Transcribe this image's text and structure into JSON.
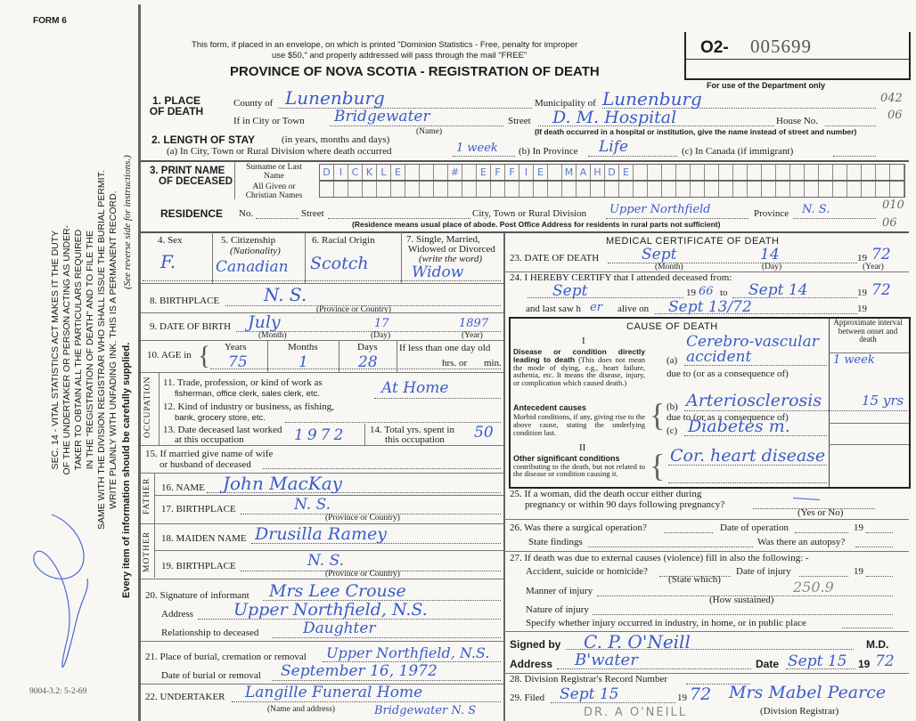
{
  "form_number": "FORM 6",
  "print_code": "9004-3.2: 5-2-69",
  "side_notice": {
    "lines": [
      "SEC. 14 - VITAL STATISTICS ACT MAKES IT THE DUTY",
      "OF THE UNDERTAKER OR PERSON ACTING AS UNDER-",
      "TAKER TO OBTAIN ALL THE PARTICULARS REQUIRED",
      "IN THE \"REGISTRATION OF DEATH\" AND TO FILE THE",
      "SAME WITH THE DIVISION REGISTRAR WHO SHALL ISSUE THE BURIAL PERMIT.",
      "WRITE PLAINLY WITH UNFADING INK. THIS IS A PERMANENT RECORD."
    ],
    "instructions": "(See reverse side for instructions.)",
    "every_item": "Every item of information should be carefully supplied."
  },
  "header": {
    "mail_notice_1": "This form, if placed in an envelope, on which is printed \"Dominion Statistics - Free, penalty for improper",
    "mail_notice_2": "use $50,\" and properly addressed will pass through the mail \"FREE\"",
    "title": "PROVINCE OF NOVA SCOTIA - REGISTRATION OF DEATH",
    "reg_prefix": "O2-",
    "reg_number": "005699",
    "dept_use": "For use of the Department only",
    "codes": [
      "042",
      "06",
      "010",
      "06"
    ]
  },
  "place_of_death": {
    "label": "1. PLACE OF DEATH",
    "county_label": "County of",
    "county": "Lunenburg",
    "municipality_label": "Municipality of",
    "municipality": "Lunenburg",
    "city_label": "If in City or Town",
    "city": "Bridgewater",
    "name_note": "(Name)",
    "street_label": "Street",
    "street": "D. M. Hospital",
    "house_label": "House No.",
    "hospital_note": "(If death occurred in a hospital or institution, give the name instead of street and number)"
  },
  "length_of_stay": {
    "label": "2. LENGTH OF STAY",
    "label_note": "(in years, months and days)",
    "a_label": "(a) In City, Town or Rural Division where death occurred",
    "a_value": "1 week",
    "b_label": "(b) In Province",
    "b_value": "Life",
    "c_label": "(c) In Canada (if immigrant)"
  },
  "name_of_deceased": {
    "label_1": "3. PRINT NAME",
    "label_2": "OF DECEASED",
    "surname_label": "Surname or Last Name",
    "given_label": "All Given or Christian Names",
    "surname_letters": [
      "D",
      "I",
      "C",
      "K",
      "L",
      "E",
      "",
      "",
      "",
      "#",
      "",
      "E",
      "F",
      "F",
      "I",
      "E",
      "",
      "M",
      "A",
      "H",
      "D",
      "E"
    ]
  },
  "residence": {
    "label": "RESIDENCE",
    "no_label": "No.",
    "street_label": "Street",
    "city_label": "City, Town or Rural Division",
    "city": "Upper Northfield",
    "province_label": "Province",
    "province": "N. S.",
    "note": "(Residence means usual place of abode. Post Office Address for residents in rural parts not sufficient)"
  },
  "personal": {
    "sex_label": "4. Sex",
    "sex": "F.",
    "citizenship_label": "5. Citizenship",
    "citizenship_note": "(Nationality)",
    "citizenship": "Canadian",
    "racial_label": "6. Racial Origin",
    "racial": "Scotch",
    "marital_label_1": "7. Single, Married,",
    "marital_label_2": "Widowed or Divorced",
    "marital_label_3": "(write the word)",
    "marital": "Widow",
    "birthplace_label": "8. BIRTHPLACE",
    "birthplace": "N. S.",
    "province_or_country": "(Province or Country)",
    "dob_label": "9. DATE OF BIRTH",
    "dob_month": "July",
    "dob_day": "17",
    "dob_year": "1897",
    "month_note": "(Month)",
    "day_note": "(Day)",
    "year_note": "(Year)",
    "age_label": "10. AGE in",
    "years_label": "Years",
    "years": "75",
    "months_label": "Months",
    "months": "1",
    "days_label": "Days",
    "days": "28",
    "less_than_day": "If less than one day old",
    "hrs_label": "hrs. or",
    "min_label": "min."
  },
  "occupation": {
    "section": "OCCUPATION",
    "trade_label_1": "11. Trade, profession, or kind of work as",
    "trade_label_2": "fisherman, office clerk, sales clerk, etc.",
    "trade": "At Home",
    "industry_label_1": "12. Kind of industry or business, as fishing,",
    "industry_label_2": "bank, grocery store, etc.",
    "last_worked_label_1": "13. Date deceased last worked",
    "last_worked_label_2": "at this occupation",
    "last_worked": "1972",
    "total_yrs_label_1": "14. Total yrs. spent in",
    "total_yrs_label_2": "this occupation",
    "total_yrs": "50",
    "spouse_label_1": "15. If married give name of wife",
    "spouse_label_2": "or husband of deceased"
  },
  "parents": {
    "father_section": "FATHER",
    "father_name_label": "16. NAME",
    "father_name": "John MacKay",
    "father_birthplace_label": "17. BIRTHPLACE",
    "father_birthplace": "N. S.",
    "mother_section": "MOTHER",
    "mother_name_label": "18. MAIDEN NAME",
    "mother_name": "Drusilla Ramey",
    "mother_birthplace_label": "19. BIRTHPLACE",
    "mother_birthplace": "N. S."
  },
  "informant": {
    "signature_label": "20. Signature of informant",
    "signature": "Mrs Lee Crouse",
    "address_label": "Address",
    "address": "Upper Northfield, N.S.",
    "relationship_label": "Relationship to deceased",
    "relationship": "Daughter"
  },
  "burial": {
    "place_label": "21. Place of burial, cremation or removal",
    "place": "Upper Northfield, N.S.",
    "date_label": "Date of burial or removal",
    "date": "September 16, 1972",
    "undertaker_label": "22. UNDERTAKER",
    "undertaker": "Langille Funeral Home",
    "undertaker_address": "Bridgewater N. S",
    "name_address_note": "(Name and address)"
  },
  "medical": {
    "title": "MEDICAL CERTIFICATE OF DEATH",
    "dod_label": "23. DATE OF DEATH",
    "dod_month": "Sept",
    "dod_day": "14",
    "dod_year_prefix": "19",
    "dod_year": "72",
    "certify_label": "24. I HEREBY CERTIFY that I attended deceased from:",
    "from": "Sept",
    "from_year": "66",
    "to_label": "to",
    "to": "Sept 14",
    "to_year": "72",
    "last_saw_label": "and last saw h",
    "last_saw_pronoun": "er",
    "alive_on_label": "alive on",
    "last_saw": "Sept 13/72",
    "cause_title": "CAUSE OF DEATH",
    "interval_label": "Approximate interval between onset and death",
    "part_1": "I",
    "part_1_desc_title": "Disease or condition directly leading to death",
    "part_1_desc": "(This does not mean the mode of dying, e.g., heart failure, asthenia, etc. It means the disease, injury, or complication which caused death.)",
    "cause_a": "Cerebro-vascular accident",
    "interval_a": "1 week",
    "due_to": "due to (or as a consequence of)",
    "antecedent_title": "Antecedent causes",
    "antecedent_desc": "Morbid conditions, if any, giving rise to the above cause, stating the underlying condition last.",
    "cause_b": "Arteriosclerosis",
    "interval_b": "15 yrs",
    "cause_c": "Diabetes m.",
    "part_2": "II",
    "other_title": "Other significant conditions",
    "other_desc": "contributing to the death, but not related to the disease or condition causing it.",
    "other": "Cor. heart disease",
    "a_label": "(a)",
    "b_label": "(b)",
    "c_label": "(c)"
  },
  "questions": {
    "q25_1": "25. If a woman, did the death occur either during",
    "q25_2": "pregnancy or within 90 days following pregnancy?",
    "yes_no": "(Yes or No)",
    "q26": "26. Was there a surgical operation?",
    "date_op": "Date of operation",
    "nineteen": "19",
    "state_findings": "State findings",
    "autopsy": "Was there an autopsy?",
    "q27": "27. If death was due to external causes (violence) fill in also the following: -",
    "accident": "Accident, suicide or homicide?",
    "state_which": "(State which)",
    "date_injury": "Date of injury",
    "manner": "Manner of injury",
    "how": "(How sustained)",
    "code": "250.9",
    "nature": "Nature of injury",
    "specify": "Specify whether injury occurred in industry, in home, or in public place"
  },
  "signature": {
    "signed_label": "Signed by",
    "signed": "C. P. O'Neill",
    "md": "M.D.",
    "address_label": "Address",
    "address": "B'water",
    "date_label": "Date",
    "date": "Sept 15",
    "year_prefix": "19",
    "year": "72"
  },
  "registrar": {
    "q28": "28. Division Registrar's Record Number",
    "q29": "29. Filed",
    "filed": "Sept 15",
    "filed_year_prefix": "19",
    "filed_year": "72",
    "registrar_sig": "Mrs Mabel Pearce",
    "registrar_label": "(Division Registrar)",
    "stamp": "DR. A O'NEILL"
  },
  "colors": {
    "ink": "#3a5cc8",
    "paper": "#f8f7f4",
    "print": "#1c1c1c"
  }
}
